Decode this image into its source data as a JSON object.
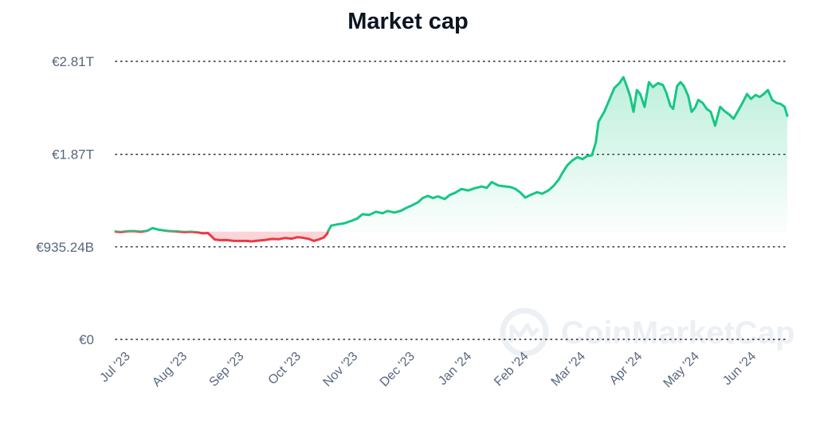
{
  "chart_data": {
    "type": "line",
    "title": "Market cap",
    "y_ticks": [
      {
        "value": 2810,
        "label": "€2.81T"
      },
      {
        "value": 1870,
        "label": "€1.87T"
      },
      {
        "value": 935.24,
        "label": "€935.24B"
      },
      {
        "value": 0,
        "label": "€0"
      }
    ],
    "x_ticks": [
      "Jul '23",
      "Aug '23",
      "Sep '23",
      "Oct '23",
      "Nov '23",
      "Dec '23",
      "Jan '24",
      "Feb '24",
      "Mar '24",
      "Apr '24",
      "May '24",
      "Jun '24"
    ],
    "ylim": [
      0,
      2810
    ],
    "y_unit": "EUR billions",
    "grid": true,
    "legend": "none",
    "colors": {
      "up": "#16c784",
      "down": "#ea3943"
    },
    "baseline_value": 1090,
    "series": [
      {
        "points": [
          [
            0.0,
            1090
          ],
          [
            0.15,
            1085
          ],
          [
            0.35,
            1093
          ],
          [
            0.55,
            1095
          ],
          [
            0.75,
            1088
          ],
          [
            0.95,
            1098
          ],
          [
            1.1,
            1125
          ],
          [
            1.3,
            1108
          ],
          [
            1.55,
            1096
          ],
          [
            1.8,
            1092
          ],
          [
            2.05,
            1085
          ],
          [
            2.25,
            1088
          ],
          [
            2.45,
            1082
          ],
          [
            2.6,
            1072
          ],
          [
            2.75,
            1075
          ],
          [
            2.83,
            1050
          ],
          [
            2.95,
            1010
          ],
          [
            3.1,
            1003
          ],
          [
            3.3,
            1005
          ],
          [
            3.5,
            997
          ],
          [
            3.7,
            995
          ],
          [
            3.9,
            995
          ],
          [
            4.05,
            990
          ],
          [
            4.25,
            998
          ],
          [
            4.45,
            1005
          ],
          [
            4.65,
            1015
          ],
          [
            4.85,
            1012
          ],
          [
            5.05,
            1025
          ],
          [
            5.25,
            1018
          ],
          [
            5.4,
            1032
          ],
          [
            5.55,
            1028
          ],
          [
            5.75,
            1016
          ],
          [
            5.9,
            995
          ],
          [
            6.05,
            1010
          ],
          [
            6.2,
            1030
          ],
          [
            6.3,
            1068
          ],
          [
            6.33,
            1095
          ],
          [
            6.42,
            1150
          ],
          [
            6.6,
            1162
          ],
          [
            6.8,
            1172
          ],
          [
            7.0,
            1195
          ],
          [
            7.2,
            1222
          ],
          [
            7.35,
            1265
          ],
          [
            7.55,
            1258
          ],
          [
            7.75,
            1290
          ],
          [
            7.95,
            1275
          ],
          [
            8.1,
            1298
          ],
          [
            8.3,
            1282
          ],
          [
            8.5,
            1300
          ],
          [
            8.65,
            1328
          ],
          [
            8.8,
            1350
          ],
          [
            9.0,
            1385
          ],
          [
            9.15,
            1430
          ],
          [
            9.3,
            1450
          ],
          [
            9.45,
            1428
          ],
          [
            9.6,
            1445
          ],
          [
            9.8,
            1418
          ],
          [
            9.95,
            1460
          ],
          [
            10.1,
            1480
          ],
          [
            10.3,
            1520
          ],
          [
            10.5,
            1505
          ],
          [
            10.7,
            1528
          ],
          [
            10.9,
            1545
          ],
          [
            11.05,
            1532
          ],
          [
            11.2,
            1590
          ],
          [
            11.4,
            1555
          ],
          [
            11.55,
            1548
          ],
          [
            11.75,
            1540
          ],
          [
            11.9,
            1522
          ],
          [
            12.05,
            1485
          ],
          [
            12.2,
            1432
          ],
          [
            12.35,
            1460
          ],
          [
            12.55,
            1488
          ],
          [
            12.7,
            1472
          ],
          [
            12.9,
            1508
          ],
          [
            13.05,
            1555
          ],
          [
            13.2,
            1618
          ],
          [
            13.3,
            1680
          ],
          [
            13.45,
            1760
          ],
          [
            13.6,
            1808
          ],
          [
            13.75,
            1842
          ],
          [
            13.9,
            1822
          ],
          [
            14.05,
            1855
          ],
          [
            14.18,
            1860
          ],
          [
            14.3,
            1990
          ],
          [
            14.38,
            2200
          ],
          [
            14.55,
            2300
          ],
          [
            14.7,
            2420
          ],
          [
            14.85,
            2540
          ],
          [
            15.0,
            2590
          ],
          [
            15.12,
            2650
          ],
          [
            15.22,
            2560
          ],
          [
            15.32,
            2460
          ],
          [
            15.42,
            2300
          ],
          [
            15.52,
            2520
          ],
          [
            15.62,
            2480
          ],
          [
            15.75,
            2350
          ],
          [
            15.88,
            2600
          ],
          [
            16.0,
            2550
          ],
          [
            16.15,
            2590
          ],
          [
            16.3,
            2570
          ],
          [
            16.4,
            2490
          ],
          [
            16.52,
            2360
          ],
          [
            16.6,
            2330
          ],
          [
            16.72,
            2560
          ],
          [
            16.82,
            2600
          ],
          [
            16.92,
            2560
          ],
          [
            17.05,
            2460
          ],
          [
            17.15,
            2300
          ],
          [
            17.25,
            2340
          ],
          [
            17.35,
            2420
          ],
          [
            17.48,
            2390
          ],
          [
            17.6,
            2330
          ],
          [
            17.72,
            2300
          ],
          [
            17.85,
            2160
          ],
          [
            18.0,
            2350
          ],
          [
            18.12,
            2310
          ],
          [
            18.28,
            2270
          ],
          [
            18.4,
            2230
          ],
          [
            18.55,
            2320
          ],
          [
            18.68,
            2400
          ],
          [
            18.8,
            2480
          ],
          [
            18.92,
            2430
          ],
          [
            19.05,
            2470
          ],
          [
            19.18,
            2450
          ],
          [
            19.3,
            2480
          ],
          [
            19.42,
            2520
          ],
          [
            19.55,
            2420
          ],
          [
            19.68,
            2390
          ],
          [
            19.8,
            2380
          ],
          [
            19.92,
            2350
          ],
          [
            20.0,
            2260
          ]
        ]
      }
    ]
  },
  "watermark": {
    "text": "CoinMarketCap"
  }
}
